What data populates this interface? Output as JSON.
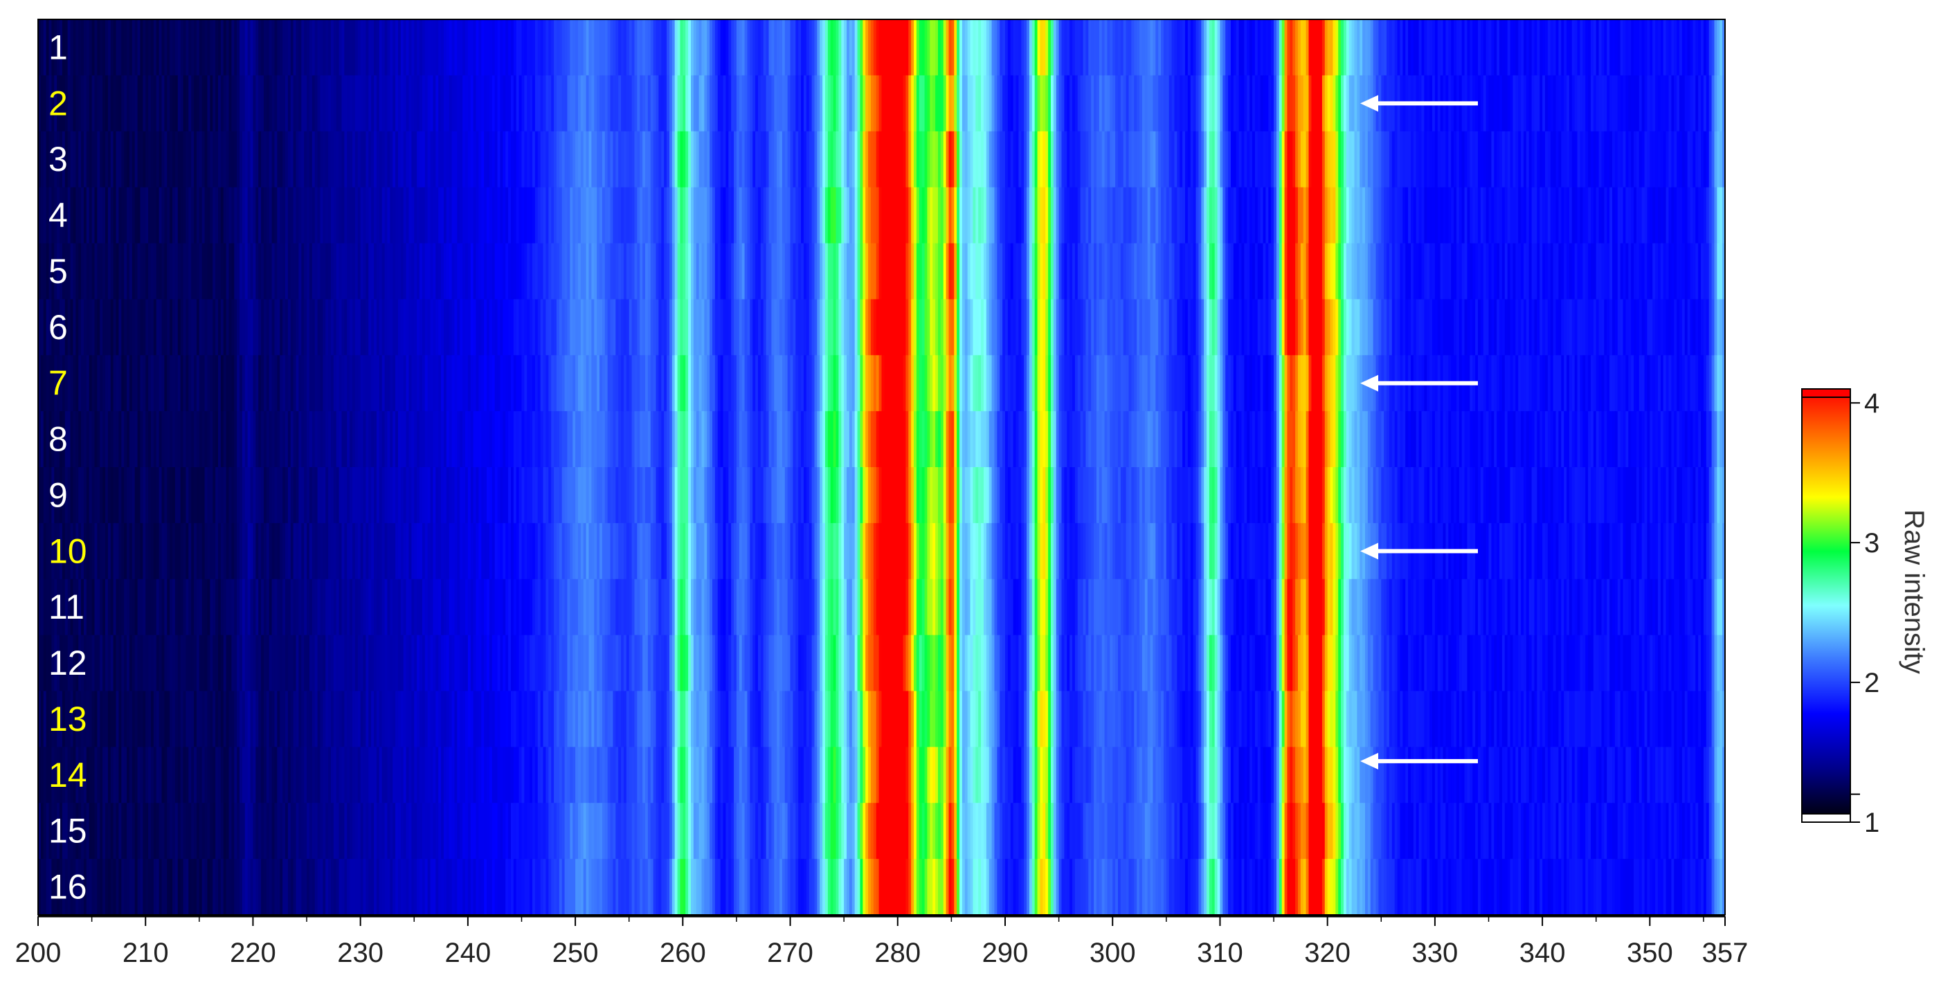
{
  "chart_data": {
    "type": "heatmap",
    "title": "",
    "xlabel": "",
    "ylabel": "",
    "xlim": [
      200,
      357
    ],
    "x_ticks": [
      "200",
      "210",
      "220",
      "230",
      "240",
      "250",
      "260",
      "270",
      "280",
      "290",
      "300",
      "310",
      "320",
      "330",
      "340",
      "350",
      "357"
    ],
    "rows": [
      {
        "label": "1",
        "highlighted": false
      },
      {
        "label": "2",
        "highlighted": true
      },
      {
        "label": "3",
        "highlighted": false
      },
      {
        "label": "4",
        "highlighted": false
      },
      {
        "label": "5",
        "highlighted": false
      },
      {
        "label": "6",
        "highlighted": false
      },
      {
        "label": "7",
        "highlighted": true
      },
      {
        "label": "8",
        "highlighted": false
      },
      {
        "label": "9",
        "highlighted": false
      },
      {
        "label": "10",
        "highlighted": true
      },
      {
        "label": "11",
        "highlighted": false
      },
      {
        "label": "12",
        "highlighted": false
      },
      {
        "label": "13",
        "highlighted": true
      },
      {
        "label": "14",
        "highlighted": true
      },
      {
        "label": "15",
        "highlighted": false
      },
      {
        "label": "16",
        "highlighted": false
      }
    ],
    "row_label_colors": {
      "normal": "#ffffff",
      "highlighted": "#ffff00"
    },
    "arrows": [
      {
        "row": 2,
        "direction": "left"
      },
      {
        "row": 7,
        "direction": "left"
      },
      {
        "row": 10,
        "direction": "left"
      },
      {
        "row": 14,
        "direction": "left"
      }
    ],
    "peaks": [
      {
        "x": 219.5,
        "height": 0.18,
        "width": 0.6
      },
      {
        "x": 251,
        "height": 0.4,
        "width": 2.2
      },
      {
        "x": 256.5,
        "height": 0.3,
        "width": 1.0
      },
      {
        "x": 260,
        "height": 1.05,
        "width": 0.7
      },
      {
        "x": 262,
        "height": 0.45,
        "width": 0.7
      },
      {
        "x": 265.5,
        "height": 0.35,
        "width": 0.6
      },
      {
        "x": 269,
        "height": 0.35,
        "width": 1.0
      },
      {
        "x": 274,
        "height": 1.1,
        "width": 1.0
      },
      {
        "x": 277.3,
        "height": 1.6,
        "width": 0.8
      },
      {
        "x": 279.3,
        "height": 3.0,
        "width": 0.9
      },
      {
        "x": 281,
        "height": 1.6,
        "width": 0.8
      },
      {
        "x": 283.3,
        "height": 1.35,
        "width": 0.8
      },
      {
        "x": 285,
        "height": 1.9,
        "width": 0.5
      },
      {
        "x": 287.5,
        "height": 0.8,
        "width": 1.2
      },
      {
        "x": 293.5,
        "height": 1.55,
        "width": 0.8
      },
      {
        "x": 299,
        "height": 0.3,
        "width": 1.5
      },
      {
        "x": 303.5,
        "height": 0.35,
        "width": 1.5
      },
      {
        "x": 309.3,
        "height": 0.95,
        "width": 0.7
      },
      {
        "x": 316.4,
        "height": 2.1,
        "width": 0.6
      },
      {
        "x": 317.6,
        "height": 1.4,
        "width": 0.6
      },
      {
        "x": 318.9,
        "height": 3.0,
        "width": 0.5
      },
      {
        "x": 320.3,
        "height": 1.35,
        "width": 0.8
      },
      {
        "x": 322.5,
        "height": 0.55,
        "width": 1.8
      },
      {
        "x": 356.5,
        "height": 0.6,
        "width": 0.5
      }
    ],
    "baseline": {
      "start": 0.25,
      "end": 0.8,
      "ramp_range": [
        220,
        245
      ]
    },
    "colorbar": {
      "label": "Raw intensity",
      "ticks": [
        {
          "label": "4",
          "value": 4
        },
        {
          "label": "3",
          "value": 3
        },
        {
          "label": "2",
          "value": 2
        },
        {
          "label": "",
          "value": 1.2
        },
        {
          "label": "1",
          "value": 1
        }
      ],
      "range": [
        1,
        4.1
      ],
      "stops": [
        "#000000",
        "#00008b",
        "#0000ff",
        "#3c78ff",
        "#7fffff",
        "#00ff40",
        "#ffff00",
        "#ff8000",
        "#ff0000"
      ]
    }
  }
}
